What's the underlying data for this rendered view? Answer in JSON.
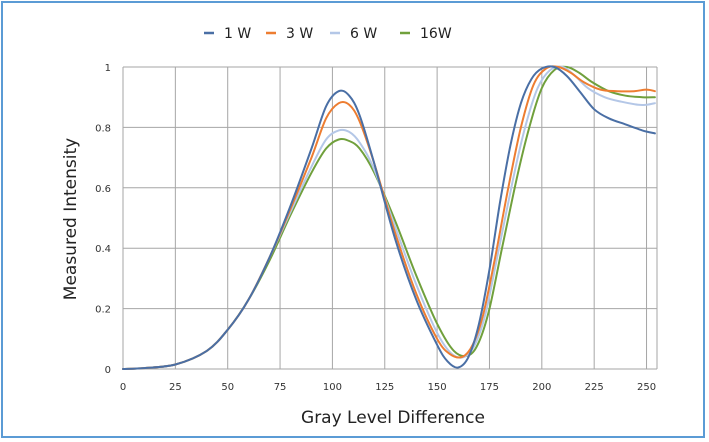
{
  "chart_data": {
    "type": "line",
    "title": "",
    "xlabel": "Gray Level Difference",
    "ylabel": "Measured Intensity",
    "xlim": [
      0,
      255
    ],
    "ylim": [
      0,
      1
    ],
    "x_ticks": [
      0,
      25,
      50,
      75,
      100,
      125,
      150,
      175,
      200,
      225,
      250
    ],
    "y_ticks": [
      0,
      0.2,
      0.4,
      0.6,
      0.8,
      1
    ],
    "y_tick_labels": [
      "0",
      "0.2",
      "0.4",
      "0.6",
      "0.8",
      "1"
    ],
    "grid": true,
    "legend_position": "top",
    "series": [
      {
        "name": "1 W",
        "color": "#4a6fa5",
        "points": [
          [
            0,
            0
          ],
          [
            10,
            0.003
          ],
          [
            25,
            0.015
          ],
          [
            40,
            0.06
          ],
          [
            50,
            0.13
          ],
          [
            60,
            0.23
          ],
          [
            70,
            0.37
          ],
          [
            80,
            0.54
          ],
          [
            90,
            0.73
          ],
          [
            97,
            0.87
          ],
          [
            103,
            0.92
          ],
          [
            108,
            0.905
          ],
          [
            113,
            0.84
          ],
          [
            120,
            0.68
          ],
          [
            130,
            0.43
          ],
          [
            140,
            0.23
          ],
          [
            150,
            0.08
          ],
          [
            155,
            0.025
          ],
          [
            160,
            0.005
          ],
          [
            165,
            0.04
          ],
          [
            170,
            0.15
          ],
          [
            175,
            0.33
          ],
          [
            180,
            0.55
          ],
          [
            185,
            0.74
          ],
          [
            190,
            0.88
          ],
          [
            195,
            0.96
          ],
          [
            200,
            0.995
          ],
          [
            206,
            1.0
          ],
          [
            212,
            0.97
          ],
          [
            218,
            0.92
          ],
          [
            225,
            0.86
          ],
          [
            232,
            0.83
          ],
          [
            240,
            0.81
          ],
          [
            248,
            0.79
          ],
          [
            254,
            0.78
          ]
        ]
      },
      {
        "name": "3 W",
        "color": "#ed7d31",
        "points": [
          [
            0,
            0
          ],
          [
            10,
            0.003
          ],
          [
            25,
            0.015
          ],
          [
            40,
            0.06
          ],
          [
            50,
            0.13
          ],
          [
            60,
            0.23
          ],
          [
            70,
            0.37
          ],
          [
            80,
            0.53
          ],
          [
            90,
            0.7
          ],
          [
            97,
            0.83
          ],
          [
            103,
            0.88
          ],
          [
            108,
            0.875
          ],
          [
            113,
            0.82
          ],
          [
            120,
            0.68
          ],
          [
            130,
            0.45
          ],
          [
            140,
            0.25
          ],
          [
            150,
            0.1
          ],
          [
            156,
            0.05
          ],
          [
            162,
            0.04
          ],
          [
            167,
            0.08
          ],
          [
            172,
            0.18
          ],
          [
            178,
            0.38
          ],
          [
            184,
            0.6
          ],
          [
            190,
            0.8
          ],
          [
            196,
            0.94
          ],
          [
            202,
            0.995
          ],
          [
            208,
            1.0
          ],
          [
            214,
            0.98
          ],
          [
            220,
            0.95
          ],
          [
            228,
            0.925
          ],
          [
            236,
            0.92
          ],
          [
            244,
            0.92
          ],
          [
            250,
            0.925
          ],
          [
            254,
            0.92
          ]
        ]
      },
      {
        "name": "6 W",
        "color": "#b4c7e7",
        "points": [
          [
            0,
            0
          ],
          [
            10,
            0.003
          ],
          [
            25,
            0.015
          ],
          [
            40,
            0.06
          ],
          [
            50,
            0.13
          ],
          [
            60,
            0.23
          ],
          [
            70,
            0.37
          ],
          [
            80,
            0.52
          ],
          [
            90,
            0.67
          ],
          [
            97,
            0.76
          ],
          [
            103,
            0.79
          ],
          [
            108,
            0.785
          ],
          [
            113,
            0.75
          ],
          [
            120,
            0.66
          ],
          [
            130,
            0.47
          ],
          [
            140,
            0.28
          ],
          [
            150,
            0.12
          ],
          [
            157,
            0.05
          ],
          [
            163,
            0.04
          ],
          [
            168,
            0.08
          ],
          [
            173,
            0.18
          ],
          [
            179,
            0.38
          ],
          [
            186,
            0.62
          ],
          [
            192,
            0.8
          ],
          [
            198,
            0.93
          ],
          [
            204,
            0.99
          ],
          [
            210,
            1.0
          ],
          [
            216,
            0.97
          ],
          [
            222,
            0.93
          ],
          [
            230,
            0.9
          ],
          [
            238,
            0.885
          ],
          [
            246,
            0.875
          ],
          [
            250,
            0.875
          ],
          [
            254,
            0.88
          ]
        ]
      },
      {
        "name": "16W",
        "color": "#70a03c",
        "points": [
          [
            0,
            0
          ],
          [
            10,
            0.003
          ],
          [
            25,
            0.015
          ],
          [
            40,
            0.06
          ],
          [
            50,
            0.13
          ],
          [
            60,
            0.23
          ],
          [
            70,
            0.36
          ],
          [
            80,
            0.51
          ],
          [
            90,
            0.65
          ],
          [
            97,
            0.73
          ],
          [
            103,
            0.76
          ],
          [
            108,
            0.755
          ],
          [
            113,
            0.73
          ],
          [
            120,
            0.65
          ],
          [
            130,
            0.49
          ],
          [
            140,
            0.31
          ],
          [
            150,
            0.15
          ],
          [
            158,
            0.06
          ],
          [
            165,
            0.045
          ],
          [
            170,
            0.09
          ],
          [
            175,
            0.2
          ],
          [
            181,
            0.4
          ],
          [
            188,
            0.63
          ],
          [
            194,
            0.8
          ],
          [
            200,
            0.93
          ],
          [
            206,
            0.99
          ],
          [
            212,
            1.0
          ],
          [
            218,
            0.98
          ],
          [
            224,
            0.95
          ],
          [
            232,
            0.92
          ],
          [
            240,
            0.905
          ],
          [
            248,
            0.9
          ],
          [
            254,
            0.9
          ]
        ]
      }
    ]
  }
}
